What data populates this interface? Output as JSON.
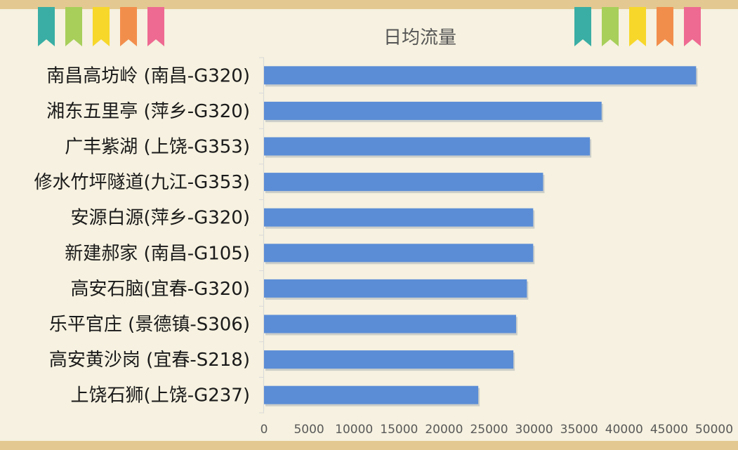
{
  "chart_data": {
    "type": "bar",
    "orientation": "horizontal",
    "title": "日均流量",
    "categories": [
      "南昌高坊岭 (南昌-G320)",
      "湘东五里亭 (萍乡-G320)",
      "广丰紫湖 (上饶-G353)",
      "修水竹坪隧道(九江-G353)",
      "安源白源(萍乡-G320)",
      "新建郝家 (南昌-G105)",
      "高安石脑(宜春-G320)",
      "乐平官庄 (景德镇-S306)",
      "高安黄沙岗 (宜春-S218)",
      "上饶石狮(上饶-G237)"
    ],
    "values": [
      48000,
      37500,
      36200,
      31000,
      29900,
      29900,
      29200,
      28000,
      27700,
      23800
    ],
    "xlim": [
      0,
      50000
    ],
    "x_ticks": [
      "0",
      "5000",
      "10000",
      "15000",
      "20000",
      "25000",
      "30000",
      "35000",
      "40000",
      "45000",
      "50000"
    ],
    "grid": false,
    "bar_color": "#5b8dd6"
  },
  "decor": {
    "flag_colors": [
      "#3aaea4",
      "#a7cf5a",
      "#f7d72a",
      "#f28e4c",
      "#ee6a92"
    ],
    "band_color": "#e3c991"
  }
}
